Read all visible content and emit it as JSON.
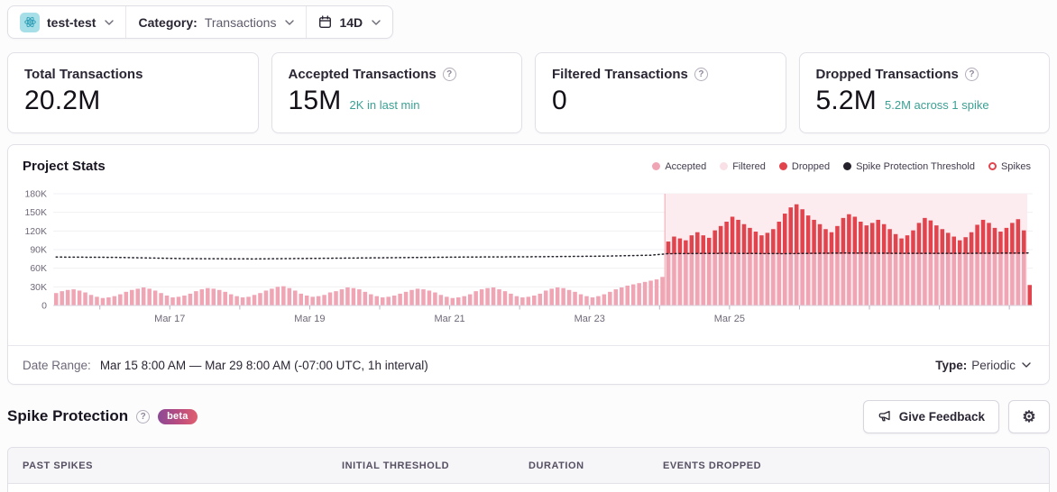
{
  "ui": {
    "help_glyph": "?"
  },
  "colors": {
    "accepted": "#f0a5b4",
    "filtered": "#f9e0e6",
    "dropped": "#e2444e",
    "threshold": "#26222c",
    "spike_region_fill": "#fdecef",
    "spike_region_edge": "#f3b3be",
    "teal_accent": "#3ca094",
    "axis_text": "#6f6878",
    "gridline": "#f0eff3",
    "baseline": "#d6d0da",
    "tick": "#b9b3c2"
  },
  "topbar": {
    "project": "test-test",
    "category_label": "Category:",
    "category_value": "Transactions",
    "range": "14D"
  },
  "cards": [
    {
      "title": "Total Transactions",
      "value": "20.2M",
      "sub": ""
    },
    {
      "title": "Accepted Transactions",
      "value": "15M",
      "sub": "2K in last min"
    },
    {
      "title": "Filtered Transactions",
      "value": "0",
      "sub": ""
    },
    {
      "title": "Dropped Transactions",
      "value": "5.2M",
      "sub": "5.2M across 1 spike"
    }
  ],
  "chart_panel": {
    "title": "Project Stats",
    "legend": [
      {
        "label": "Accepted",
        "swatch": "accepted"
      },
      {
        "label": "Filtered",
        "swatch": "filtered"
      },
      {
        "label": "Dropped",
        "swatch": "dropped"
      },
      {
        "label": "Spike Protection Threshold",
        "swatch": "threshold"
      },
      {
        "label": "Spikes",
        "swatch": "spikes"
      }
    ],
    "date_range_label": "Date Range:",
    "date_range_value": "Mar 15 8:00 AM — Mar 29 8:00 AM (-07:00 UTC, 1h interval)",
    "type_label": "Type:",
    "type_value": "Periodic"
  },
  "chart_data": {
    "type": "bar",
    "title": "Project Stats",
    "x_start": "Mar 15 8:00 AM",
    "x_end": "Mar 29 8:00 AM",
    "bar_interval_hours": 2,
    "unit": "thousands of transactions",
    "ylim": [
      0,
      180
    ],
    "y_ticks": [
      {
        "v": 180,
        "label": "180K"
      },
      {
        "v": 150,
        "label": "150K"
      },
      {
        "v": 120,
        "label": "120K"
      },
      {
        "v": 90,
        "label": "90K"
      },
      {
        "v": 60,
        "label": "60K"
      },
      {
        "v": 30,
        "label": "30K"
      },
      {
        "v": 0,
        "label": "0"
      }
    ],
    "x_day_ticks": [
      8,
      20,
      32,
      44,
      56,
      68,
      80,
      92,
      104,
      116,
      128,
      140,
      152,
      164
    ],
    "x_labels": [
      {
        "bar": 20,
        "label": "Mar 17"
      },
      {
        "bar": 44,
        "label": "Mar 19"
      },
      {
        "bar": 68,
        "label": "Mar 21"
      },
      {
        "bar": 92,
        "label": "Mar 23"
      },
      {
        "bar": 116,
        "label": "Mar 25"
      }
    ],
    "filtered_values_all_zero": true,
    "series": [
      {
        "name": "Accepted",
        "values": [
          20,
          23,
          25,
          26,
          24,
          21,
          17,
          14,
          12,
          13,
          15,
          18,
          22,
          25,
          27,
          29,
          27,
          24,
          20,
          16,
          13,
          14,
          16,
          19,
          23,
          26,
          28,
          27,
          25,
          22,
          18,
          15,
          13,
          14,
          17,
          20,
          24,
          27,
          30,
          31,
          28,
          24,
          19,
          16,
          14,
          15,
          17,
          21,
          23,
          26,
          29,
          28,
          26,
          22,
          18,
          15,
          13,
          14,
          16,
          19,
          22,
          25,
          27,
          26,
          24,
          21,
          17,
          14,
          12,
          13,
          15,
          18,
          23,
          26,
          28,
          29,
          26,
          23,
          19,
          15,
          13,
          14,
          16,
          19,
          24,
          27,
          29,
          28,
          25,
          22,
          18,
          15,
          13,
          15,
          18,
          22,
          26,
          29,
          32,
          34,
          36,
          38,
          40,
          42,
          46,
          83,
          83,
          83,
          83,
          83,
          83,
          83,
          83,
          83,
          83,
          83,
          83,
          83,
          83,
          83,
          83,
          83,
          83,
          83,
          83,
          83,
          83,
          83,
          83,
          83,
          83,
          83,
          83,
          83,
          83,
          83,
          83,
          83,
          83,
          83,
          83,
          83,
          83,
          83,
          83,
          83,
          83,
          83,
          83,
          83,
          83,
          83,
          83,
          83,
          83,
          83,
          83,
          83,
          83,
          83,
          83,
          83,
          83,
          83,
          83,
          83,
          83,
          0
        ]
      },
      {
        "name": "Dropped",
        "values": [
          0,
          0,
          0,
          0,
          0,
          0,
          0,
          0,
          0,
          0,
          0,
          0,
          0,
          0,
          0,
          0,
          0,
          0,
          0,
          0,
          0,
          0,
          0,
          0,
          0,
          0,
          0,
          0,
          0,
          0,
          0,
          0,
          0,
          0,
          0,
          0,
          0,
          0,
          0,
          0,
          0,
          0,
          0,
          0,
          0,
          0,
          0,
          0,
          0,
          0,
          0,
          0,
          0,
          0,
          0,
          0,
          0,
          0,
          0,
          0,
          0,
          0,
          0,
          0,
          0,
          0,
          0,
          0,
          0,
          0,
          0,
          0,
          0,
          0,
          0,
          0,
          0,
          0,
          0,
          0,
          0,
          0,
          0,
          0,
          0,
          0,
          0,
          0,
          0,
          0,
          0,
          0,
          0,
          0,
          0,
          0,
          0,
          0,
          0,
          0,
          0,
          0,
          0,
          0,
          0,
          20,
          28,
          25,
          22,
          30,
          35,
          30,
          26,
          38,
          45,
          52,
          60,
          55,
          48,
          42,
          36,
          30,
          34,
          40,
          52,
          65,
          75,
          80,
          72,
          62,
          55,
          48,
          40,
          35,
          45,
          58,
          64,
          60,
          52,
          46,
          50,
          55,
          48,
          40,
          32,
          25,
          30,
          38,
          50,
          58,
          54,
          46,
          40,
          34,
          28,
          22,
          27,
          35,
          47,
          55,
          50,
          42,
          36,
          42,
          50,
          56,
          38,
          33
        ]
      }
    ],
    "threshold_points": [
      [
        0,
        78
      ],
      [
        10,
        77.5
      ],
      [
        22,
        75.5
      ],
      [
        34,
        75
      ],
      [
        46,
        76
      ],
      [
        58,
        77
      ],
      [
        70,
        78
      ],
      [
        82,
        78.5
      ],
      [
        94,
        79.5
      ],
      [
        102,
        81
      ],
      [
        105,
        83.5
      ],
      [
        115,
        84
      ],
      [
        125,
        83.5
      ],
      [
        135,
        84.5
      ],
      [
        145,
        84
      ],
      [
        155,
        84
      ],
      [
        167,
        84.5
      ]
    ],
    "spike_region": {
      "start_bar": 105,
      "end_bar": 166
    }
  },
  "spike_section": {
    "title": "Spike Protection",
    "beta_badge": "beta",
    "feedback_button": "Give Feedback",
    "table_headers": [
      "PAST SPIKES",
      "INITIAL THRESHOLD",
      "DURATION",
      "EVENTS DROPPED"
    ]
  }
}
